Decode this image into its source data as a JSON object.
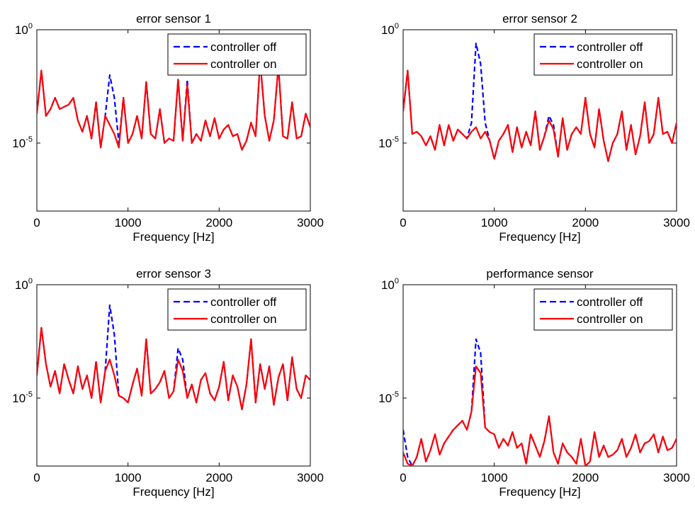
{
  "colors": {
    "controller_off": "#0000ff",
    "controller_on": "#ff0000",
    "axes": "#000000",
    "background": "#ffffff"
  },
  "chart_data": [
    {
      "type": "line",
      "title": "error sensor 1",
      "xlabel": "Frequency [Hz]",
      "ylabel": "",
      "y_scale": "log",
      "xlim": [
        0,
        3000
      ],
      "ylim_exp": [
        -8,
        0
      ],
      "x_ticks": [
        0,
        1000,
        2000,
        3000
      ],
      "y_ticks": [
        {
          "base": "10",
          "exp": "0",
          "value_exp": 0
        },
        {
          "base": "10",
          "exp": "-5",
          "value_exp": -5
        }
      ],
      "legend": {
        "position": "top-right",
        "entries": [
          "controller off",
          "controller on"
        ]
      },
      "x": [
        0,
        50,
        100,
        150,
        200,
        250,
        300,
        350,
        400,
        450,
        500,
        550,
        600,
        650,
        700,
        750,
        800,
        850,
        900,
        950,
        1000,
        1050,
        1100,
        1150,
        1200,
        1250,
        1300,
        1350,
        1400,
        1450,
        1500,
        1550,
        1600,
        1650,
        1700,
        1750,
        1800,
        1850,
        1900,
        1950,
        2000,
        2050,
        2100,
        2150,
        2200,
        2250,
        2300,
        2350,
        2400,
        2450,
        2500,
        2550,
        2600,
        2650,
        2700,
        2750,
        2800,
        2850,
        2900,
        2950,
        3000
      ],
      "series": [
        {
          "name": "controller off",
          "style": "dashed",
          "y_exp": [
            -3.7,
            -1.8,
            -3.8,
            -3.5,
            -3.0,
            -3.5,
            -3.4,
            -3.3,
            -3.0,
            -4.0,
            -4.5,
            -3.8,
            -4.8,
            -3.2,
            -5.2,
            -3.8,
            -2.0,
            -3.0,
            -5.0,
            -3.0,
            -5.0,
            -4.6,
            -3.8,
            -4.8,
            -2.3,
            -4.6,
            -4.8,
            -3.5,
            -5.0,
            -4.8,
            -4.9,
            -2.2,
            -4.9,
            -2.2,
            -5.0,
            -4.6,
            -4.9,
            -4.0,
            -4.7,
            -3.9,
            -4.8,
            -4.4,
            -4.2,
            -4.7,
            -4.6,
            -5.3,
            -4.9,
            -4.1,
            -4.7,
            -1.4,
            -3.8,
            -4.9,
            -4.0,
            -1.6,
            -4.7,
            -4.8,
            -3.2,
            -4.8,
            -4.7,
            -3.7,
            -4.3
          ]
        },
        {
          "name": "controller on",
          "style": "solid",
          "y_exp": [
            -3.7,
            -1.8,
            -3.8,
            -3.5,
            -3.0,
            -3.5,
            -3.4,
            -3.3,
            -3.0,
            -4.0,
            -4.5,
            -3.8,
            -4.8,
            -3.2,
            -5.2,
            -3.8,
            -4.2,
            -4.6,
            -5.2,
            -3.0,
            -5.0,
            -4.6,
            -3.8,
            -4.8,
            -2.3,
            -4.6,
            -4.8,
            -3.5,
            -5.0,
            -4.8,
            -4.9,
            -2.2,
            -4.9,
            -2.4,
            -5.0,
            -4.6,
            -4.9,
            -4.0,
            -4.7,
            -3.9,
            -4.8,
            -4.4,
            -4.2,
            -4.7,
            -4.6,
            -5.3,
            -4.9,
            -4.1,
            -4.7,
            -1.4,
            -3.8,
            -4.9,
            -4.0,
            -1.6,
            -4.7,
            -4.8,
            -3.2,
            -4.8,
            -4.7,
            -3.7,
            -4.3
          ]
        }
      ]
    },
    {
      "type": "line",
      "title": "error sensor 2",
      "xlabel": "Frequency [Hz]",
      "ylabel": "",
      "y_scale": "log",
      "xlim": [
        0,
        3000
      ],
      "ylim_exp": [
        -8,
        0
      ],
      "x_ticks": [
        0,
        1000,
        2000,
        3000
      ],
      "y_ticks": [
        {
          "base": "10",
          "exp": "0",
          "value_exp": 0
        },
        {
          "base": "10",
          "exp": "-5",
          "value_exp": -5
        }
      ],
      "legend": {
        "position": "top-right",
        "entries": [
          "controller off",
          "controller on"
        ]
      },
      "x": [
        0,
        50,
        100,
        150,
        200,
        250,
        300,
        350,
        400,
        450,
        500,
        550,
        600,
        650,
        700,
        750,
        800,
        850,
        900,
        950,
        1000,
        1050,
        1100,
        1150,
        1200,
        1250,
        1300,
        1350,
        1400,
        1450,
        1500,
        1550,
        1600,
        1650,
        1700,
        1750,
        1800,
        1850,
        1900,
        1950,
        2000,
        2050,
        2100,
        2150,
        2200,
        2250,
        2300,
        2350,
        2400,
        2450,
        2500,
        2550,
        2600,
        2650,
        2700,
        2750,
        2800,
        2850,
        2900,
        2950,
        3000
      ],
      "series": [
        {
          "name": "controller off",
          "style": "dashed",
          "y_exp": [
            -3.6,
            -1.8,
            -4.6,
            -4.5,
            -4.7,
            -5.1,
            -4.7,
            -5.3,
            -4.2,
            -5.1,
            -4.2,
            -4.9,
            -4.4,
            -4.6,
            -4.8,
            -4.1,
            -0.6,
            -1.5,
            -4.1,
            -4.9,
            -5.7,
            -4.9,
            -4.6,
            -4.2,
            -5.4,
            -4.3,
            -5.2,
            -4.5,
            -5.1,
            -3.6,
            -5.3,
            -4.7,
            -3.8,
            -4.2,
            -5.6,
            -3.9,
            -5.3,
            -4.6,
            -4.3,
            -4.6,
            -3.0,
            -4.6,
            -5.2,
            -3.5,
            -4.9,
            -5.8,
            -5.0,
            -4.6,
            -3.6,
            -5.3,
            -4.2,
            -5.5,
            -4.7,
            -3.2,
            -5.0,
            -4.6,
            -3.0,
            -4.6,
            -4.5,
            -5.0,
            -4.1
          ]
        },
        {
          "name": "controller on",
          "style": "solid",
          "y_exp": [
            -3.6,
            -1.8,
            -4.6,
            -4.5,
            -4.7,
            -5.1,
            -4.7,
            -5.3,
            -4.2,
            -5.1,
            -4.2,
            -4.9,
            -4.4,
            -4.6,
            -4.8,
            -4.5,
            -4.3,
            -4.8,
            -4.5,
            -4.9,
            -5.7,
            -4.9,
            -4.6,
            -4.2,
            -5.4,
            -4.3,
            -5.2,
            -4.5,
            -5.1,
            -3.6,
            -5.3,
            -4.7,
            -4.0,
            -4.4,
            -5.6,
            -3.9,
            -5.3,
            -4.6,
            -4.3,
            -4.6,
            -3.0,
            -4.6,
            -5.2,
            -3.5,
            -4.9,
            -5.8,
            -5.0,
            -4.6,
            -3.6,
            -5.3,
            -4.2,
            -5.5,
            -4.7,
            -3.2,
            -5.0,
            -4.6,
            -3.0,
            -4.6,
            -4.5,
            -5.0,
            -4.1
          ]
        }
      ]
    },
    {
      "type": "line",
      "title": "error sensor 3",
      "xlabel": "Frequency [Hz]",
      "ylabel": "",
      "y_scale": "log",
      "xlim": [
        0,
        3000
      ],
      "ylim_exp": [
        -8,
        0
      ],
      "x_ticks": [
        0,
        1000,
        2000,
        3000
      ],
      "y_ticks": [
        {
          "base": "10",
          "exp": "0",
          "value_exp": 0
        },
        {
          "base": "10",
          "exp": "-5",
          "value_exp": -5
        }
      ],
      "legend": {
        "position": "top-right",
        "entries": [
          "controller off",
          "controller on"
        ]
      },
      "x": [
        0,
        50,
        100,
        150,
        200,
        250,
        300,
        350,
        400,
        450,
        500,
        550,
        600,
        650,
        700,
        750,
        800,
        850,
        900,
        950,
        1000,
        1050,
        1100,
        1150,
        1200,
        1250,
        1300,
        1350,
        1400,
        1450,
        1500,
        1550,
        1600,
        1650,
        1700,
        1750,
        1800,
        1850,
        1900,
        1950,
        2000,
        2050,
        2100,
        2150,
        2200,
        2250,
        2300,
        2350,
        2400,
        2450,
        2500,
        2550,
        2600,
        2650,
        2700,
        2750,
        2800,
        2850,
        2900,
        2950,
        3000
      ],
      "series": [
        {
          "name": "controller off",
          "style": "dashed",
          "y_exp": [
            -4.0,
            -1.9,
            -3.5,
            -4.5,
            -3.8,
            -4.8,
            -3.5,
            -4.2,
            -4.8,
            -3.6,
            -4.6,
            -4.0,
            -5.0,
            -3.4,
            -5.2,
            -3.8,
            -0.9,
            -2.2,
            -4.9,
            -5.0,
            -5.2,
            -4.4,
            -3.7,
            -4.9,
            -2.4,
            -4.8,
            -4.6,
            -4.3,
            -3.8,
            -5.0,
            -4.7,
            -2.8,
            -3.3,
            -5.0,
            -4.4,
            -5.2,
            -4.2,
            -3.9,
            -4.8,
            -5.1,
            -4.5,
            -3.4,
            -5.1,
            -4.0,
            -4.5,
            -5.5,
            -4.4,
            -2.4,
            -5.2,
            -3.5,
            -4.6,
            -3.6,
            -5.3,
            -4.1,
            -3.5,
            -5.1,
            -3.2,
            -4.6,
            -5.0,
            -4.0,
            -4.2
          ]
        },
        {
          "name": "controller on",
          "style": "solid",
          "y_exp": [
            -4.0,
            -1.9,
            -3.5,
            -4.5,
            -3.8,
            -4.8,
            -3.5,
            -4.2,
            -4.8,
            -3.6,
            -4.6,
            -4.0,
            -5.0,
            -3.4,
            -5.2,
            -3.8,
            -3.3,
            -4.0,
            -4.9,
            -5.0,
            -5.2,
            -4.4,
            -3.7,
            -4.9,
            -2.4,
            -4.8,
            -4.6,
            -4.3,
            -3.8,
            -5.0,
            -4.7,
            -3.3,
            -3.8,
            -5.0,
            -4.4,
            -5.2,
            -4.2,
            -3.9,
            -4.8,
            -5.1,
            -4.5,
            -3.4,
            -5.1,
            -4.0,
            -4.5,
            -5.5,
            -4.4,
            -2.4,
            -5.2,
            -3.5,
            -4.6,
            -3.6,
            -5.3,
            -4.1,
            -3.5,
            -5.1,
            -3.2,
            -4.6,
            -5.0,
            -4.0,
            -4.2
          ]
        }
      ]
    },
    {
      "type": "line",
      "title": "performance sensor",
      "xlabel": "Frequency [Hz]",
      "ylabel": "",
      "y_scale": "log",
      "xlim": [
        0,
        3000
      ],
      "ylim_exp": [
        -8,
        0
      ],
      "x_ticks": [
        0,
        1000,
        2000,
        3000
      ],
      "y_ticks": [
        {
          "base": "10",
          "exp": "0",
          "value_exp": 0
        },
        {
          "base": "10",
          "exp": "-5",
          "value_exp": -5
        }
      ],
      "legend": {
        "position": "top-right",
        "entries": [
          "controller off",
          "controller on"
        ]
      },
      "x": [
        0,
        50,
        100,
        150,
        200,
        250,
        300,
        350,
        400,
        450,
        500,
        550,
        600,
        650,
        700,
        750,
        800,
        850,
        900,
        950,
        1000,
        1050,
        1100,
        1150,
        1200,
        1250,
        1300,
        1350,
        1400,
        1450,
        1500,
        1550,
        1600,
        1650,
        1700,
        1750,
        1800,
        1850,
        1900,
        1950,
        2000,
        2050,
        2100,
        2150,
        2200,
        2250,
        2300,
        2350,
        2400,
        2450,
        2500,
        2550,
        2600,
        2650,
        2700,
        2750,
        2800,
        2850,
        2900,
        2950,
        3000
      ],
      "series": [
        {
          "name": "controller off",
          "style": "dashed",
          "y_exp": [
            -6.4,
            -7.6,
            -8.0,
            -7.6,
            -6.8,
            -7.8,
            -7.3,
            -6.6,
            -7.5,
            -7.0,
            -6.7,
            -6.4,
            -6.2,
            -6.0,
            -6.4,
            -5.6,
            -2.4,
            -3.0,
            -6.3,
            -6.5,
            -6.6,
            -7.2,
            -6.8,
            -7.1,
            -6.5,
            -7.2,
            -7.0,
            -7.9,
            -6.6,
            -7.1,
            -7.6,
            -6.9,
            -5.8,
            -7.4,
            -7.9,
            -7.0,
            -7.4,
            -7.6,
            -7.9,
            -6.8,
            -8.0,
            -7.8,
            -6.5,
            -7.6,
            -7.1,
            -7.6,
            -7.5,
            -7.3,
            -6.8,
            -7.6,
            -7.2,
            -6.6,
            -7.4,
            -7.0,
            -6.9,
            -6.6,
            -7.4,
            -6.7,
            -7.3,
            -7.2,
            -6.8
          ]
        },
        {
          "name": "controller on",
          "style": "solid",
          "y_exp": [
            -7.4,
            -7.9,
            -8.0,
            -7.6,
            -6.8,
            -7.8,
            -7.3,
            -6.6,
            -7.5,
            -7.0,
            -6.7,
            -6.4,
            -6.2,
            -6.0,
            -6.4,
            -5.6,
            -3.6,
            -3.9,
            -6.3,
            -6.5,
            -6.6,
            -7.2,
            -6.8,
            -7.1,
            -6.5,
            -7.2,
            -7.0,
            -7.9,
            -6.6,
            -7.1,
            -7.6,
            -6.9,
            -5.8,
            -7.4,
            -7.9,
            -7.0,
            -7.4,
            -7.6,
            -7.9,
            -6.8,
            -8.0,
            -7.8,
            -6.5,
            -7.6,
            -7.1,
            -7.6,
            -7.5,
            -7.3,
            -6.8,
            -7.6,
            -7.2,
            -6.6,
            -7.4,
            -7.0,
            -6.9,
            -6.6,
            -7.4,
            -6.7,
            -7.3,
            -7.2,
            -6.8
          ]
        }
      ]
    }
  ]
}
